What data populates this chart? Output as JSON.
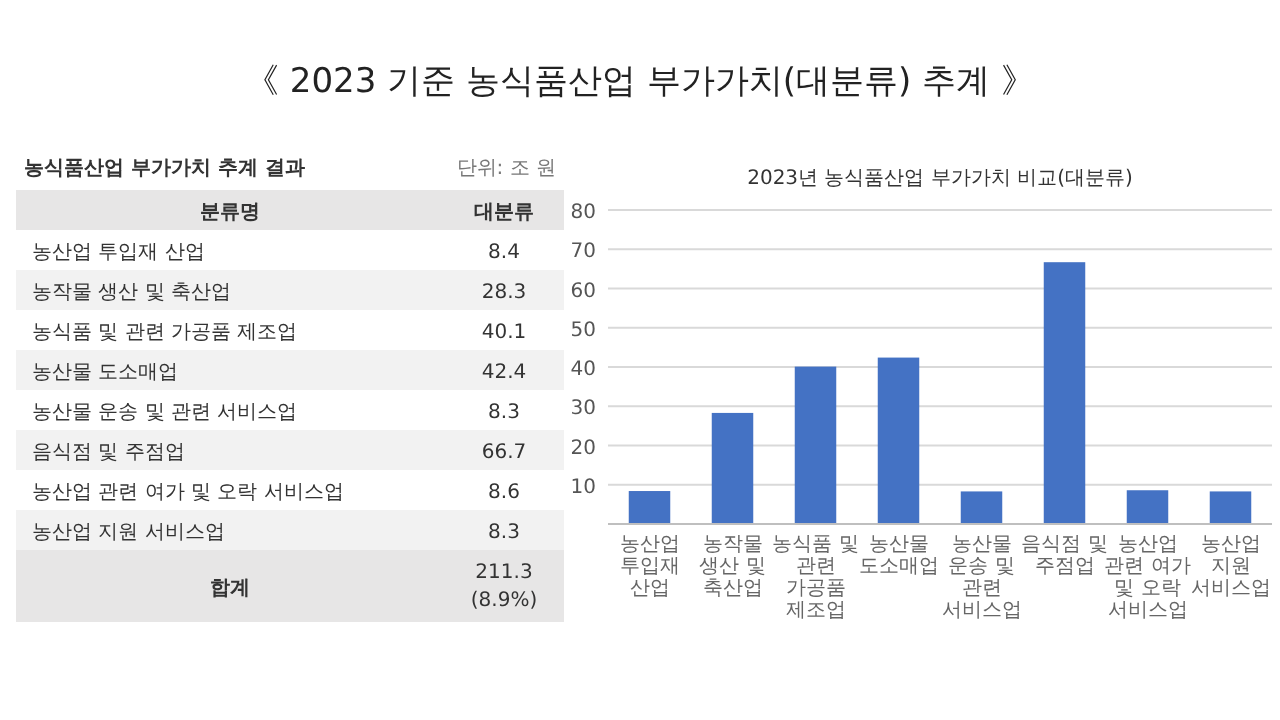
{
  "chart_data": [
    {
      "type": "other",
      "title": "《 2023 기준 농식품산업 부가가치(대분류) 추계 》",
      "subtitle": "농식품산업 부가가치 추계 결과",
      "categories": [
        "농산업 투입재 산업",
        "농작물 생산 및 축산업",
        "농식품 및 관련 가공품 제조업",
        "농산물 도소매업",
        "농산물 운송 및 관련 서비스업",
        "음식점 및 주점업",
        "농산업 관련 여가 및 오락 서비스업",
        "농산업 지원 서비스업"
      ],
      "values": [
        8.4,
        28.3,
        40.1,
        42.4,
        8.3,
        66.7,
        8.6,
        8.3
      ],
      "data_labels": true,
      "annotations": [
        "단위: 조 원",
        "분류명",
        "대분류",
        "합계",
        "211.3",
        "(8.9%)"
      ]
    },
    {
      "type": "bar",
      "title": "2023년 농식품산업 부가가치 비교(대분류)",
      "categories": [
        "농산업 투입재 산업",
        "농작물 생산 및 축산업",
        "농식품 및 관련 가공품 제조업",
        "농산물 도소매업",
        "농산물 운송 및 관련 서비스업",
        "음식점 및 주점업",
        "농산업 관련 여가 및 오락 서비스업",
        "농산업 지원 서비스업"
      ],
      "values": [
        8.4,
        28.3,
        40.1,
        42.4,
        8.3,
        66.7,
        8.6,
        8.3
      ],
      "color": "#4472c4",
      "ylim": [
        0,
        80
      ],
      "yticks": [
        10,
        20,
        30,
        40,
        50,
        60,
        70,
        80
      ],
      "grid": "y"
    }
  ]
}
